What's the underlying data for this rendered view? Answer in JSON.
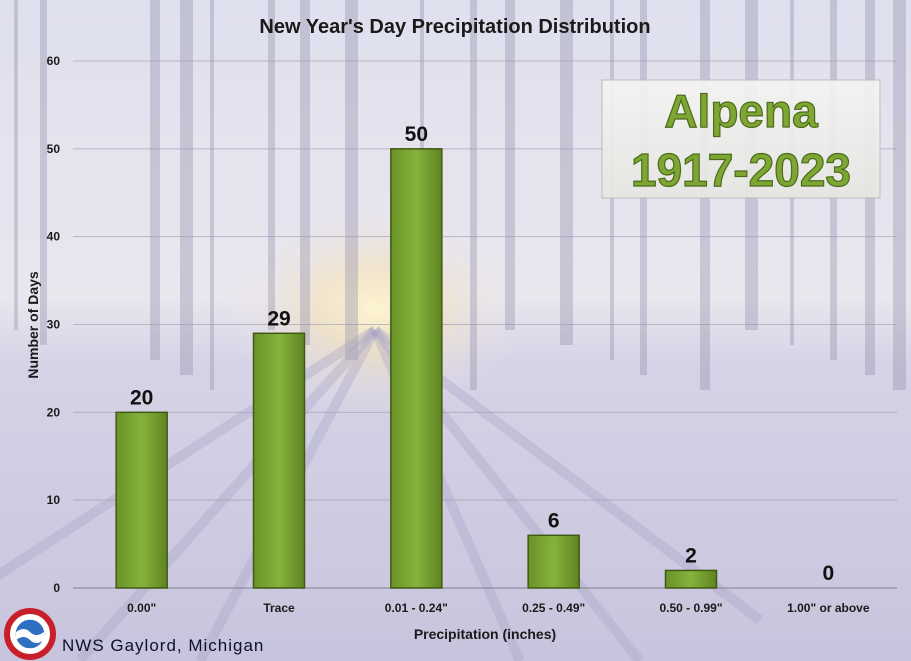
{
  "chart_data": {
    "type": "bar",
    "title": "New Year's Day Precipitation Distribution",
    "xlabel": "Precipitation (inches)",
    "ylabel": "Number of Days",
    "categories": [
      "0.00\"",
      "Trace",
      "0.01 - 0.24\"",
      "0.25 - 0.49\"",
      "0.50 - 0.99\"",
      "1.00\" or above"
    ],
    "values": [
      20,
      29,
      50,
      6,
      2,
      0
    ],
    "data_labels": [
      "20",
      "29",
      "50",
      "6",
      "2",
      "0"
    ],
    "ylim": [
      0,
      60
    ],
    "yticks": [
      0,
      10,
      20,
      30,
      40,
      50,
      60
    ],
    "ytick_labels": [
      "0",
      "10",
      "20",
      "30",
      "40",
      "50",
      "60"
    ],
    "grid": true,
    "bar_color": "#7ca535",
    "bar_edge_color": "#3f5a14"
  },
  "inset": {
    "line1": "Alpena",
    "line2": "1917-2023"
  },
  "footer": {
    "text": "NWS Gaylord, Michigan",
    "logo_icon": "nws-logo-icon"
  }
}
